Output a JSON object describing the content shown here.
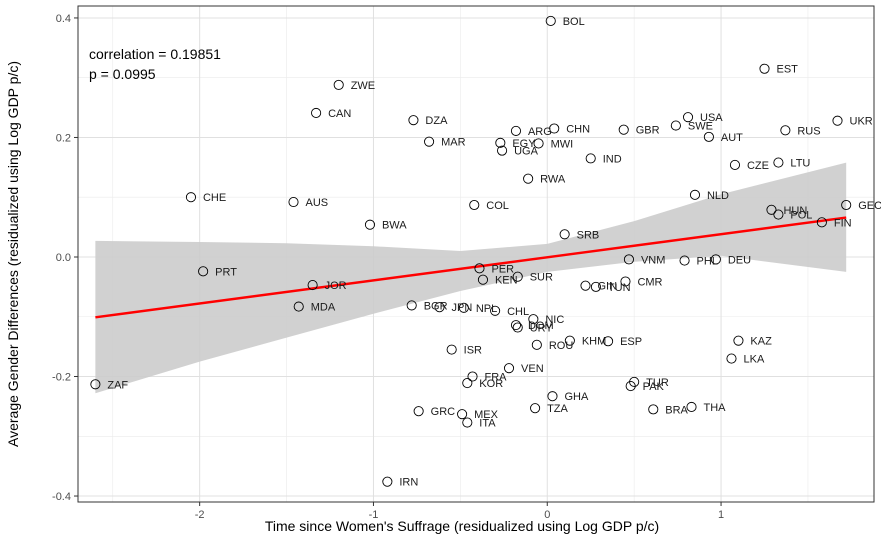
{
  "chart_data": {
    "type": "scatter",
    "xlabel": "Time since Women's Suffrage (residualized using Log GDP p/c)",
    "ylabel": "Average Gender Differences (residualized using Log GDP p/c)",
    "xlim": [
      -2.7,
      1.88
    ],
    "ylim": [
      -0.41,
      0.42
    ],
    "x_ticks": [
      -2,
      -1,
      0,
      1
    ],
    "y_ticks": [
      -0.4,
      -0.2,
      0.0,
      0.2,
      0.4
    ],
    "x_tick_labels": [
      "-2",
      "-1",
      "0",
      "1"
    ],
    "y_tick_labels": [
      "-0.4",
      "-0.2",
      "0.0",
      "0.2",
      "0.4"
    ],
    "grid": true,
    "annotations": [
      "correlation = 0.19851",
      "p = 0.0995"
    ],
    "regression": {
      "color": "#ff0000",
      "x": [
        -2.6,
        1.72
      ],
      "y": [
        -0.101,
        0.066
      ],
      "band_color": "#cccccc",
      "band": [
        {
          "x": -2.6,
          "lo": -0.228,
          "hi": 0.027
        },
        {
          "x": -2.0,
          "lo": -0.175,
          "hi": 0.025
        },
        {
          "x": -1.5,
          "lo": -0.135,
          "hi": 0.023
        },
        {
          "x": -1.0,
          "lo": -0.095,
          "hi": 0.018
        },
        {
          "x": -0.5,
          "lo": -0.057,
          "hi": 0.01
        },
        {
          "x": 0.0,
          "lo": -0.025,
          "hi": 0.022
        },
        {
          "x": 0.5,
          "lo": -0.008,
          "hi": 0.06
        },
        {
          "x": 1.0,
          "lo": 0.002,
          "hi": 0.105
        },
        {
          "x": 1.72,
          "lo": -0.025,
          "hi": 0.158
        }
      ]
    },
    "points": [
      {
        "label": "BOL",
        "x": 0.02,
        "y": 0.395
      },
      {
        "label": "EST",
        "x": 1.25,
        "y": 0.315
      },
      {
        "label": "ZWE",
        "x": -1.2,
        "y": 0.288
      },
      {
        "label": "CAN",
        "x": -1.33,
        "y": 0.241
      },
      {
        "label": "USA",
        "x": 0.81,
        "y": 0.234
      },
      {
        "label": "DZA",
        "x": -0.77,
        "y": 0.229
      },
      {
        "label": "UKR",
        "x": 1.67,
        "y": 0.228
      },
      {
        "label": "SWE",
        "x": 0.74,
        "y": 0.22
      },
      {
        "label": "CHN",
        "x": 0.04,
        "y": 0.215
      },
      {
        "label": "GBR",
        "x": 0.44,
        "y": 0.213
      },
      {
        "label": "RUS",
        "x": 1.37,
        "y": 0.212
      },
      {
        "label": "ARG",
        "x": -0.18,
        "y": 0.211
      },
      {
        "label": "AUT",
        "x": 0.93,
        "y": 0.201
      },
      {
        "label": "MAR",
        "x": -0.68,
        "y": 0.193
      },
      {
        "label": "EGY",
        "x": -0.27,
        "y": 0.191
      },
      {
        "label": "MWI",
        "x": -0.05,
        "y": 0.19
      },
      {
        "label": "UGA",
        "x": -0.26,
        "y": 0.178
      },
      {
        "label": "IND",
        "x": 0.25,
        "y": 0.165
      },
      {
        "label": "LTU",
        "x": 1.33,
        "y": 0.158
      },
      {
        "label": "CZE",
        "x": 1.08,
        "y": 0.154
      },
      {
        "label": "RWA",
        "x": -0.11,
        "y": 0.131
      },
      {
        "label": "NLD",
        "x": 0.85,
        "y": 0.104
      },
      {
        "label": "CHE",
        "x": -2.05,
        "y": 0.1
      },
      {
        "label": "AUS",
        "x": -1.46,
        "y": 0.092
      },
      {
        "label": "COL",
        "x": -0.42,
        "y": 0.087
      },
      {
        "label": "GEO",
        "x": 1.72,
        "y": 0.087
      },
      {
        "label": "HUN",
        "x": 1.29,
        "y": 0.079
      },
      {
        "label": "POL",
        "x": 1.33,
        "y": 0.071
      },
      {
        "label": "FIN",
        "x": 1.58,
        "y": 0.058
      },
      {
        "label": "BWA",
        "x": -1.02,
        "y": 0.054
      },
      {
        "label": "SRB",
        "x": 0.1,
        "y": 0.038
      },
      {
        "label": "VNM",
        "x": 0.47,
        "y": -0.004
      },
      {
        "label": "PHL",
        "x": 0.79,
        "y": -0.006
      },
      {
        "label": "DEU",
        "x": 0.97,
        "y": -0.004
      },
      {
        "label": "PRT",
        "x": -1.98,
        "y": -0.024
      },
      {
        "label": "PER",
        "x": -0.39,
        "y": -0.019
      },
      {
        "label": "KEN",
        "x": -0.37,
        "y": -0.038
      },
      {
        "label": "SUR",
        "x": -0.17,
        "y": -0.033
      },
      {
        "label": "JOR",
        "x": -1.35,
        "y": -0.047
      },
      {
        "label": "CMR",
        "x": 0.45,
        "y": -0.041
      },
      {
        "label": "GIN",
        "x": 0.22,
        "y": -0.048
      },
      {
        "label": "TUN",
        "x": 0.28,
        "y": -0.05
      },
      {
        "label": "MDA",
        "x": -1.43,
        "y": -0.083
      },
      {
        "label": "BGR",
        "x": -0.78,
        "y": -0.081
      },
      {
        "label": "JPN",
        "x": -0.62,
        "y": -0.084
      },
      {
        "label": "NPL",
        "x": -0.48,
        "y": -0.085
      },
      {
        "label": "CHL",
        "x": -0.3,
        "y": -0.09
      },
      {
        "label": "NIC",
        "x": -0.08,
        "y": -0.104
      },
      {
        "label": "DOM",
        "x": -0.18,
        "y": -0.114
      },
      {
        "label": "URY",
        "x": -0.17,
        "y": -0.118
      },
      {
        "label": "KAZ",
        "x": 1.1,
        "y": -0.14
      },
      {
        "label": "KHM",
        "x": 0.13,
        "y": -0.14
      },
      {
        "label": "ESP",
        "x": 0.35,
        "y": -0.141
      },
      {
        "label": "ROU",
        "x": -0.06,
        "y": -0.147
      },
      {
        "label": "ISR",
        "x": -0.55,
        "y": -0.155
      },
      {
        "label": "LKA",
        "x": 1.06,
        "y": -0.17
      },
      {
        "label": "VEN",
        "x": -0.22,
        "y": -0.186
      },
      {
        "label": "FRA",
        "x": -0.43,
        "y": -0.2
      },
      {
        "label": "TUR",
        "x": 0.5,
        "y": -0.209
      },
      {
        "label": "KOR",
        "x": -0.46,
        "y": -0.211
      },
      {
        "label": "PAK",
        "x": 0.48,
        "y": -0.216
      },
      {
        "label": "ZAF",
        "x": -2.6,
        "y": -0.213
      },
      {
        "label": "GHA",
        "x": 0.03,
        "y": -0.233
      },
      {
        "label": "THA",
        "x": 0.83,
        "y": -0.251
      },
      {
        "label": "TZA",
        "x": -0.07,
        "y": -0.253
      },
      {
        "label": "BRA",
        "x": 0.61,
        "y": -0.255
      },
      {
        "label": "GRC",
        "x": -0.74,
        "y": -0.258
      },
      {
        "label": "MEX",
        "x": -0.49,
        "y": -0.263
      },
      {
        "label": "ITA",
        "x": -0.46,
        "y": -0.277
      },
      {
        "label": "IRN",
        "x": -0.92,
        "y": -0.376
      }
    ]
  }
}
